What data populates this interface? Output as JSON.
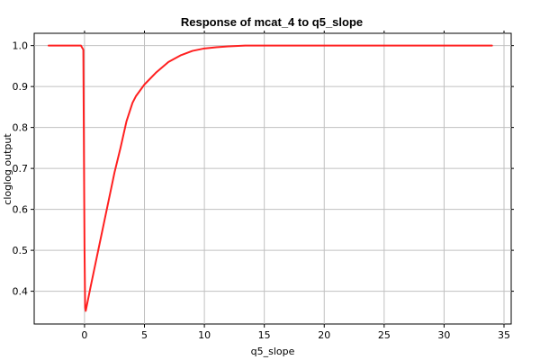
{
  "chart_data": {
    "type": "line",
    "title": "Response of mcat_4 to q5_slope",
    "xlabel": "q5_slope",
    "ylabel": "cloglog output",
    "xlim": [
      -4.2,
      35.6
    ],
    "ylim": [
      0.32,
      1.03
    ],
    "x_ticks": [
      0,
      5,
      10,
      15,
      20,
      25,
      30,
      35
    ],
    "y_ticks": [
      0.4,
      0.5,
      0.6,
      0.7,
      0.8,
      0.9,
      1.0
    ],
    "x_tick_labels": [
      "0",
      "5",
      "10",
      "15",
      "20",
      "25",
      "30",
      "35"
    ],
    "y_tick_labels": [
      "0.4",
      "0.5",
      "0.6",
      "0.7",
      "0.8",
      "0.9",
      "1.0"
    ],
    "grid": true,
    "series": [
      {
        "color": "#ff2020",
        "x": [
          -3.0,
          -0.3,
          -0.1,
          0.0,
          0.05,
          0.1,
          0.5,
          1.0,
          1.5,
          2.0,
          2.5,
          3.0,
          3.5,
          4.0,
          4.3,
          5.0,
          6.0,
          7.0,
          8.0,
          9.0,
          10.0,
          11.0,
          12.0,
          13.4,
          20.0,
          25.0,
          30.0,
          34.0
        ],
        "y": [
          1.0,
          1.0,
          0.99,
          0.5,
          0.36,
          0.352,
          0.41,
          0.48,
          0.55,
          0.62,
          0.69,
          0.75,
          0.815,
          0.86,
          0.877,
          0.905,
          0.935,
          0.96,
          0.976,
          0.987,
          0.993,
          0.996,
          0.998,
          1.0,
          1.0,
          1.0,
          1.0,
          1.0
        ]
      }
    ]
  }
}
